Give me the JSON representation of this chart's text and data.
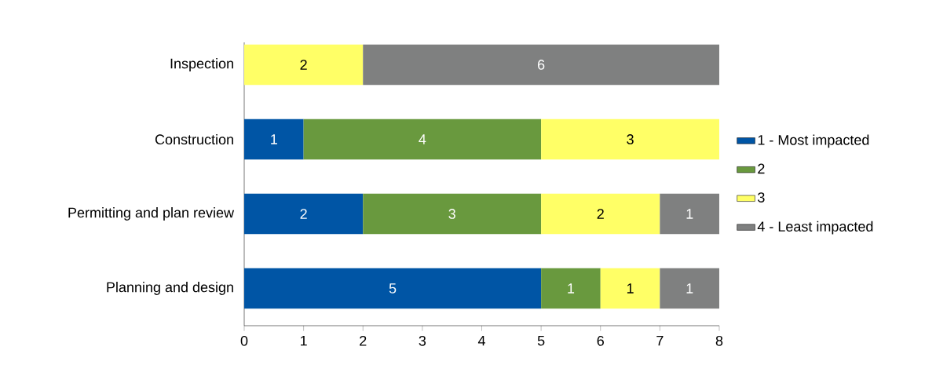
{
  "chart_data": {
    "type": "bar",
    "orientation": "horizontal",
    "stacked": true,
    "categories": [
      "Inspection",
      "Construction",
      "Permitting and plan review",
      "Planning and design"
    ],
    "series": [
      {
        "name": "1 - Most impacted",
        "color": "#0055a5",
        "values": [
          null,
          1,
          2,
          5
        ]
      },
      {
        "name": "2",
        "color": "#69993e",
        "values": [
          null,
          4,
          3,
          1
        ]
      },
      {
        "name": "3",
        "color": "#ffff66",
        "values": [
          2,
          3,
          2,
          1
        ]
      },
      {
        "name": "4 - Least impacted",
        "color": "#7f8080",
        "values": [
          6,
          null,
          1,
          1
        ]
      }
    ],
    "xlim": [
      0,
      8
    ],
    "xticks": [
      0,
      1,
      2,
      3,
      4,
      5,
      6,
      7,
      8
    ],
    "data_labels": true,
    "grid": false,
    "legend": "right"
  }
}
